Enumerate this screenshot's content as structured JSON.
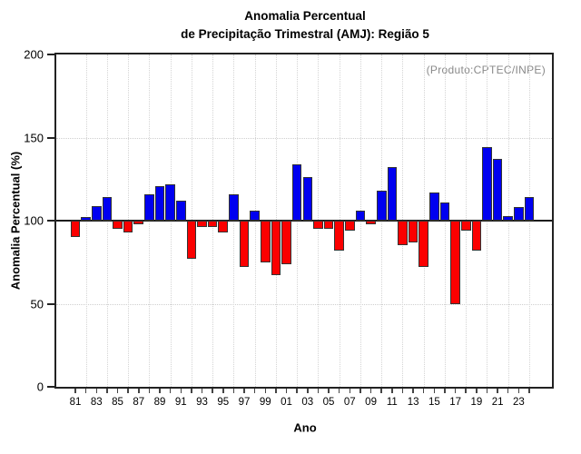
{
  "title": {
    "line1": "Anomalia Percentual",
    "line2": "de Precipitação Trimestral (AMJ): Região 5"
  },
  "annotation": "(Produto:CPTEC/INPE)",
  "axes": {
    "xlabel": "Ano",
    "ylabel": "Anomalia Percentual (%)"
  },
  "chart_data": {
    "type": "bar",
    "title": "Anomalia Percentual de Precipitação Trimestral (AMJ): Região 5",
    "xlabel": "Ano",
    "ylabel": "Anomalia Percentual (%)",
    "ylim": [
      0,
      200
    ],
    "yticks": [
      0,
      50,
      100,
      150,
      200
    ],
    "baseline": 100,
    "dotted_hgrid_values": [
      50,
      150
    ],
    "grid": "dotted",
    "legend_position": "none",
    "colors": {
      "above_baseline": "#0000f0",
      "below_baseline": "#fb0000",
      "border": "#333333"
    },
    "x_tick_labels_shown": [
      "81",
      "83",
      "85",
      "87",
      "89",
      "91",
      "93",
      "95",
      "97",
      "99",
      "01",
      "03",
      "05",
      "07",
      "09",
      "11",
      "13",
      "15",
      "17",
      "19",
      "21",
      "23"
    ],
    "years": [
      1981,
      1982,
      1983,
      1984,
      1985,
      1986,
      1987,
      1988,
      1989,
      1990,
      1991,
      1992,
      1993,
      1994,
      1995,
      1996,
      1997,
      1998,
      1999,
      2000,
      2001,
      2002,
      2003,
      2004,
      2005,
      2006,
      2007,
      2008,
      2009,
      2010,
      2011,
      2012,
      2013,
      2014,
      2015,
      2016,
      2017,
      2018,
      2019,
      2020,
      2021,
      2022,
      2023,
      2024
    ],
    "values": [
      90,
      102,
      109,
      114,
      95,
      93,
      98,
      116,
      121,
      122,
      112,
      77,
      96,
      96,
      93,
      116,
      72,
      106,
      75,
      67,
      74,
      134,
      126,
      95,
      95,
      82,
      94,
      106,
      98,
      118,
      132,
      85,
      87,
      72,
      117,
      111,
      50,
      94,
      82,
      144,
      137,
      103,
      108,
      114
    ]
  }
}
